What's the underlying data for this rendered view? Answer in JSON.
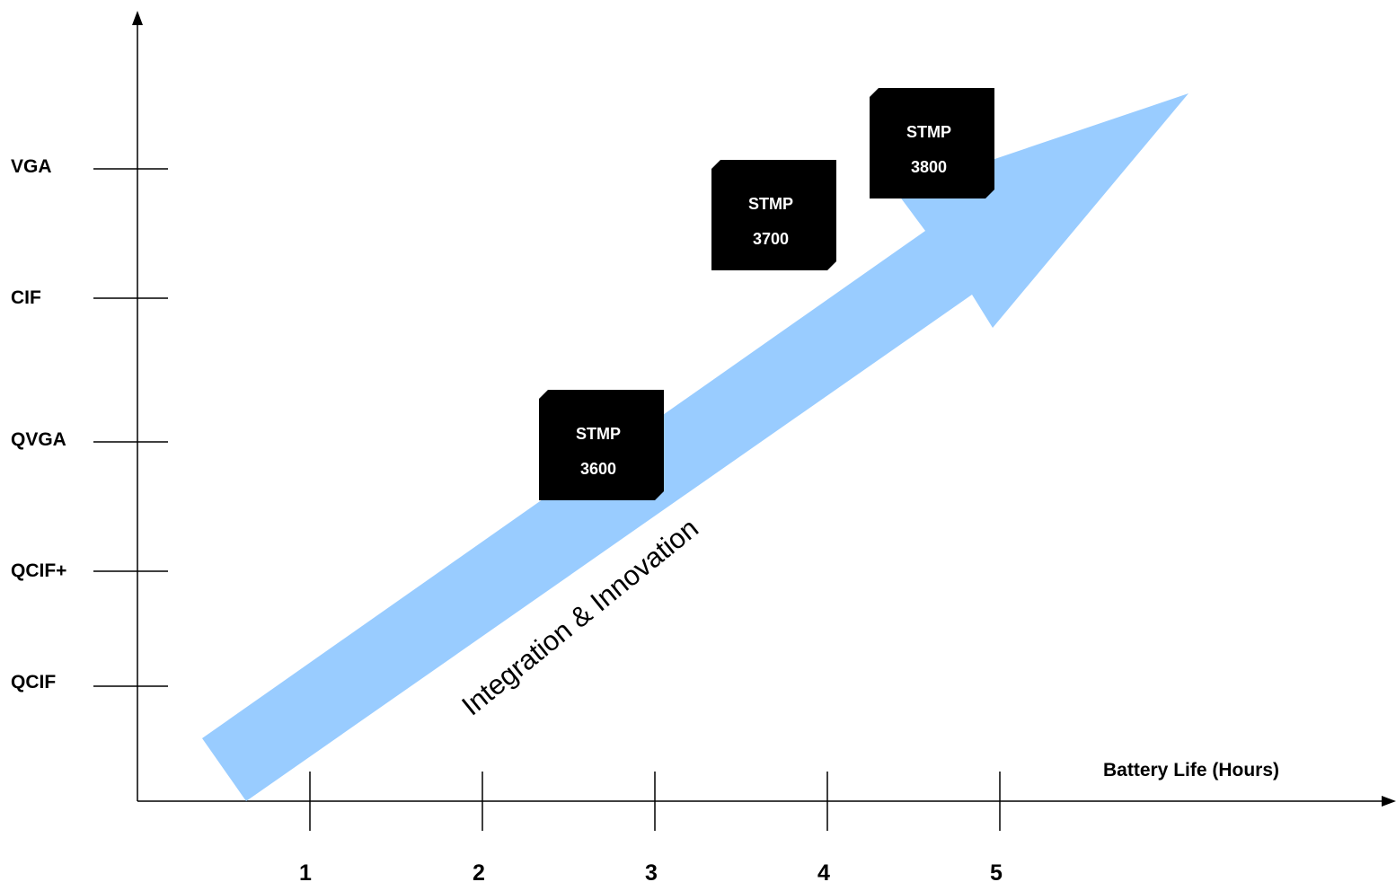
{
  "y_axis": {
    "ticks": [
      "QCIF",
      "QCIF+",
      "QVGA",
      "CIF",
      "VGA"
    ]
  },
  "x_axis": {
    "title": "Battery Life (Hours)",
    "ticks": [
      "1",
      "2",
      "3",
      "4",
      "5"
    ]
  },
  "arrow": {
    "label": "Integration & Innovation",
    "color": "#99ccff"
  },
  "chips": [
    {
      "line1": "STMP",
      "line2": "3600",
      "color": "#000000"
    },
    {
      "line1": "STMP",
      "line2": "3700",
      "color": "#000000"
    },
    {
      "line1": "STMP",
      "line2": "3800",
      "color": "#000000"
    }
  ]
}
